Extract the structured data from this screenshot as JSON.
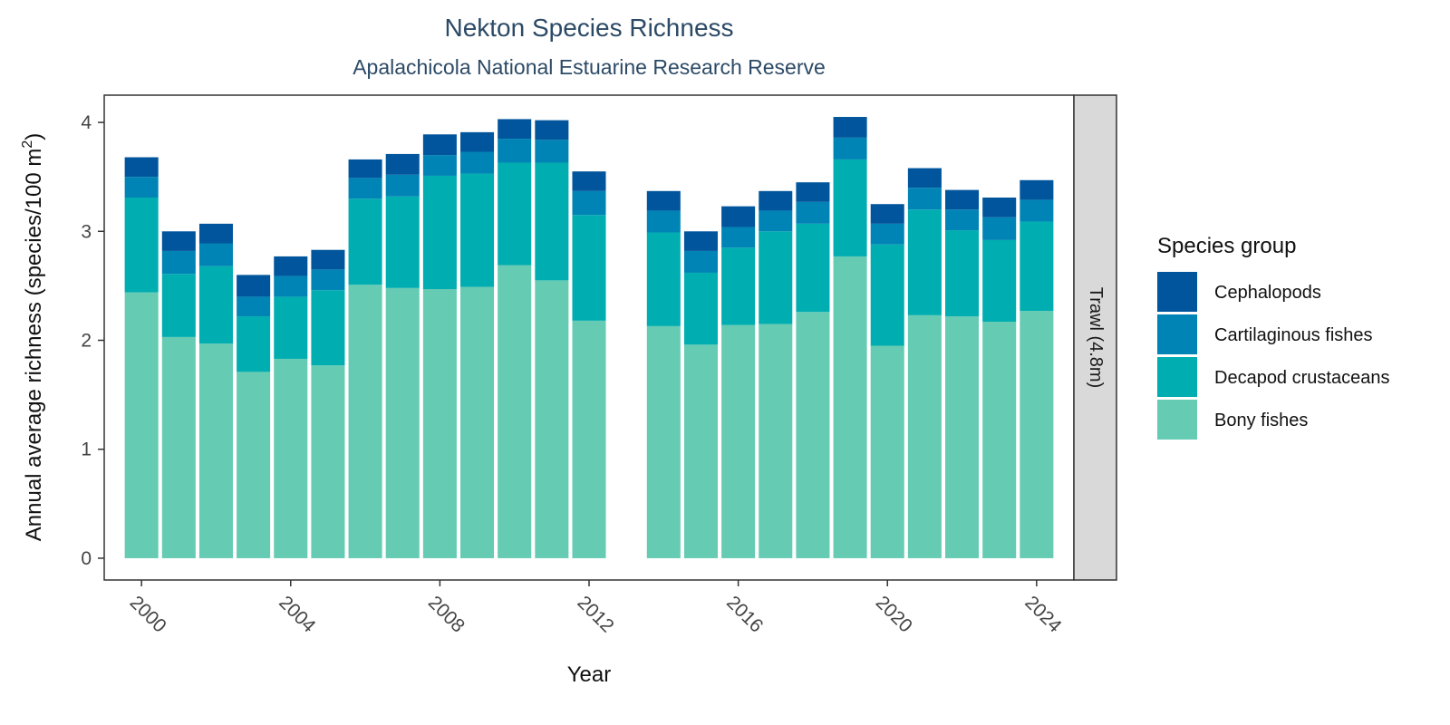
{
  "chart_data": {
    "type": "bar",
    "stacked": true,
    "title": "Nekton Species Richness",
    "subtitle": "Apalachicola National Estuarine Research Reserve",
    "xlabel": "Year",
    "ylabel": "Annual average richness (species/100 m",
    "ylabel_superscript": "2",
    "ylabel_close": ")",
    "facet_label": "Trawl (4.8m)",
    "legend_title": "Species group",
    "legend_position": "right",
    "grid": false,
    "xlim": [
      1999,
      2025
    ],
    "ylim": [
      -0.2,
      4.25
    ],
    "x_ticks": [
      2000,
      2004,
      2008,
      2012,
      2016,
      2020,
      2024
    ],
    "y_ticks": [
      0,
      1,
      2,
      3,
      4
    ],
    "categories": [
      2000,
      2001,
      2002,
      2003,
      2004,
      2005,
      2006,
      2007,
      2008,
      2009,
      2010,
      2011,
      2012,
      2014,
      2015,
      2016,
      2017,
      2018,
      2019,
      2020,
      2021,
      2022,
      2023,
      2024
    ],
    "series": [
      {
        "name": "Bony fishes",
        "color": "#66cbb3",
        "values": [
          2.44,
          2.03,
          1.97,
          1.71,
          1.83,
          1.77,
          2.51,
          2.48,
          2.47,
          2.49,
          2.69,
          2.55,
          2.18,
          2.13,
          1.96,
          2.14,
          2.15,
          2.26,
          2.77,
          1.95,
          2.23,
          2.22,
          2.17,
          2.27
        ]
      },
      {
        "name": "Decapod crustaceans",
        "color": "#00adb0",
        "values": [
          0.87,
          0.58,
          0.71,
          0.51,
          0.57,
          0.69,
          0.79,
          0.84,
          1.04,
          1.04,
          0.94,
          1.08,
          0.97,
          0.86,
          0.66,
          0.71,
          0.85,
          0.81,
          0.89,
          0.93,
          0.97,
          0.79,
          0.75,
          0.82
        ]
      },
      {
        "name": "Cartilaginous fishes",
        "color": "#0084b5",
        "values": [
          0.19,
          0.21,
          0.21,
          0.18,
          0.19,
          0.19,
          0.19,
          0.2,
          0.19,
          0.2,
          0.22,
          0.21,
          0.22,
          0.2,
          0.2,
          0.19,
          0.19,
          0.2,
          0.2,
          0.19,
          0.2,
          0.19,
          0.21,
          0.2
        ]
      },
      {
        "name": "Cephalopods",
        "color": "#00559c",
        "values": [
          0.18,
          0.18,
          0.18,
          0.2,
          0.18,
          0.18,
          0.17,
          0.19,
          0.19,
          0.18,
          0.18,
          0.18,
          0.18,
          0.18,
          0.18,
          0.19,
          0.18,
          0.18,
          0.19,
          0.18,
          0.18,
          0.18,
          0.18,
          0.18
        ]
      }
    ],
    "legend_order": [
      "Cephalopods",
      "Cartilaginous fishes",
      "Decapod crustaceans",
      "Bony fishes"
    ]
  },
  "colors": {
    "panel_border": "#333333",
    "strip_fill": "#d9d9d9",
    "title": "#2c4a66"
  }
}
